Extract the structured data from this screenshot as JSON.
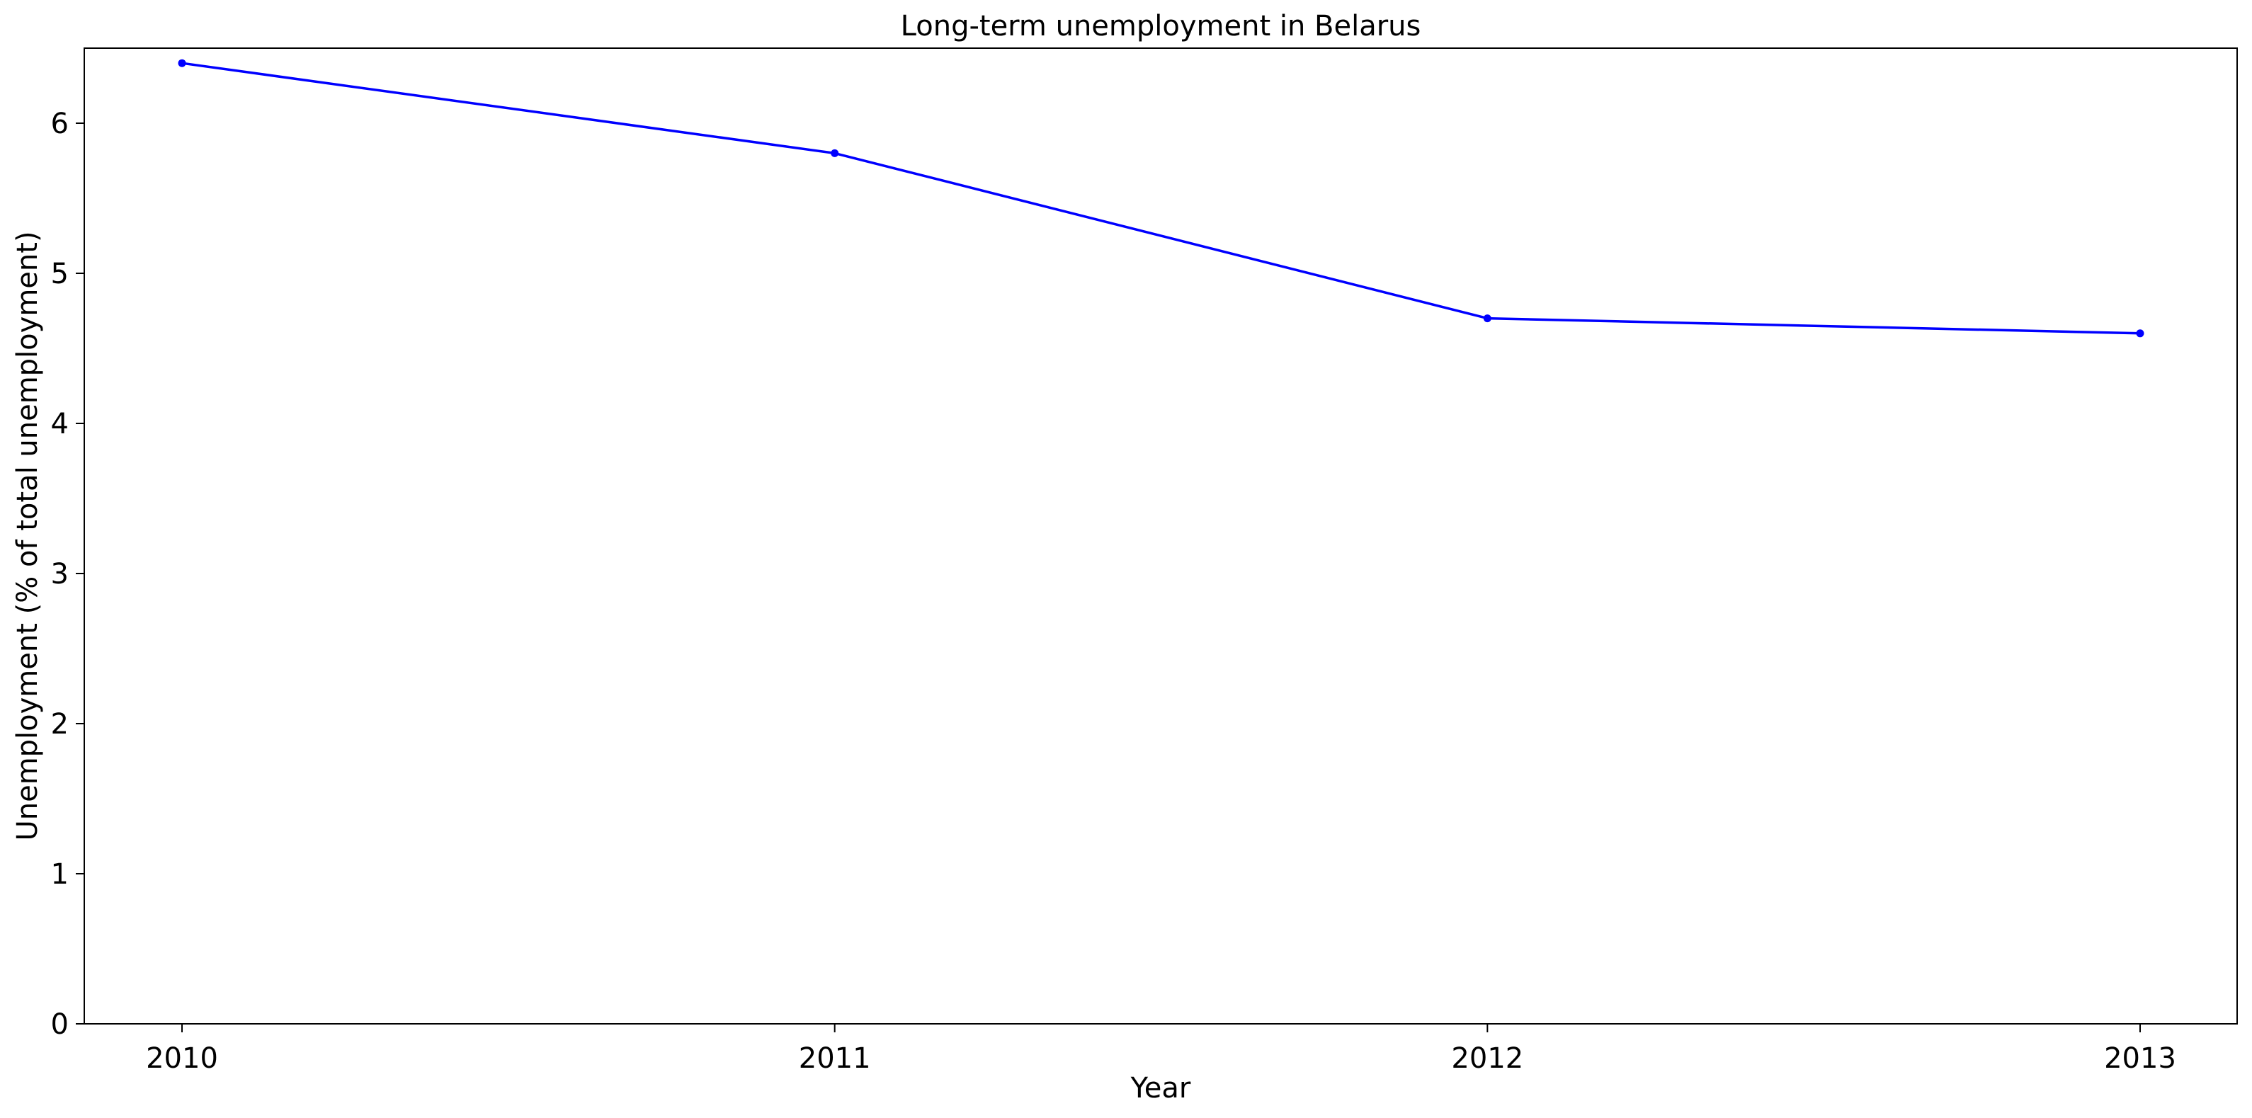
{
  "chart_data": {
    "type": "line",
    "title": "Long-term unemployment in Belarus",
    "xlabel": "Year",
    "ylabel": "Unemployment (% of total unemployment)",
    "categories": [
      "2010",
      "2011",
      "2012",
      "2013"
    ],
    "series": [
      {
        "values": [
          6.4,
          5.8,
          4.7,
          4.6
        ],
        "color": "#0000ff",
        "marker": "circle"
      }
    ],
    "ylim": [
      0,
      6.5
    ],
    "yticks": [
      0,
      1,
      2,
      3,
      4,
      5,
      6
    ],
    "grid": false,
    "legend": "none"
  }
}
